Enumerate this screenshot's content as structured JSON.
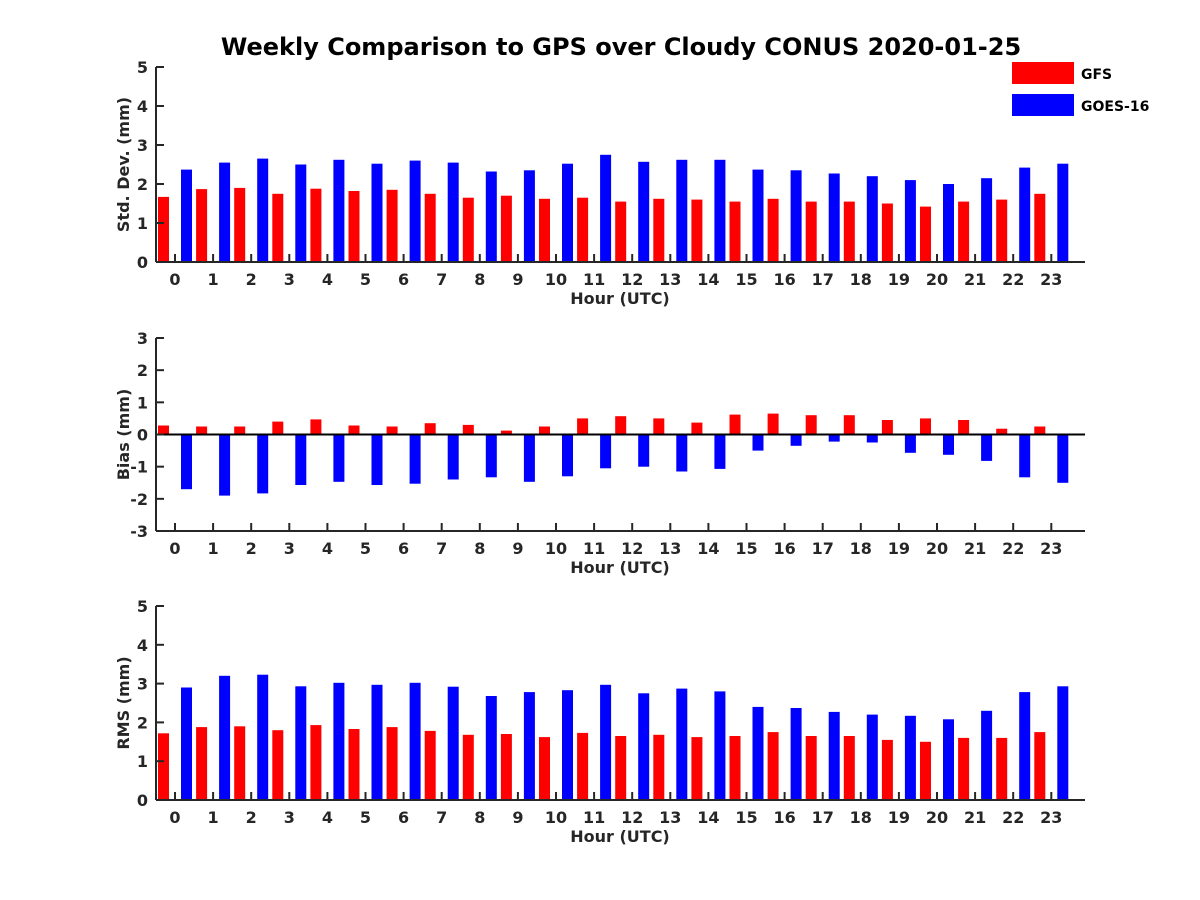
{
  "title": "Weekly Comparison to GPS over Cloudy CONUS 2020-01-25",
  "colors": {
    "GFS": "#ff0000",
    "GOES-16": "#0000ff"
  },
  "legend": [
    {
      "label": "GFS",
      "color": "#ff0000"
    },
    {
      "label": "GOES-16",
      "color": "#0000ff"
    }
  ],
  "chart_data": [
    {
      "type": "bar",
      "xlabel": "Hour (UTC)",
      "ylabel": "Std. Dev. (mm)",
      "ylim": [
        0,
        5
      ],
      "yticks": [
        0,
        1,
        2,
        3,
        4,
        5
      ],
      "categories": [
        "0",
        "1",
        "2",
        "3",
        "4",
        "5",
        "6",
        "7",
        "8",
        "9",
        "10",
        "11",
        "12",
        "13",
        "14",
        "15",
        "16",
        "17",
        "18",
        "19",
        "20",
        "21",
        "22",
        "23"
      ],
      "series": [
        {
          "name": "GFS",
          "values": [
            1.67,
            1.87,
            1.9,
            1.75,
            1.88,
            1.82,
            1.85,
            1.75,
            1.65,
            1.7,
            1.62,
            1.65,
            1.55,
            1.62,
            1.6,
            1.55,
            1.62,
            1.55,
            1.55,
            1.5,
            1.42,
            1.55,
            1.6,
            1.75
          ]
        },
        {
          "name": "GOES-16",
          "values": [
            2.37,
            2.55,
            2.65,
            2.5,
            2.62,
            2.52,
            2.6,
            2.55,
            2.32,
            2.35,
            2.52,
            2.75,
            2.57,
            2.62,
            2.62,
            2.37,
            2.35,
            2.27,
            2.2,
            2.1,
            2.0,
            2.15,
            2.42,
            2.52
          ]
        }
      ]
    },
    {
      "type": "bar",
      "xlabel": "Hour (UTC)",
      "ylabel": "Bias (mm)",
      "ylim": [
        -3,
        3
      ],
      "yticks": [
        -3,
        -2,
        -1,
        0,
        1,
        2,
        3
      ],
      "categories": [
        "0",
        "1",
        "2",
        "3",
        "4",
        "5",
        "6",
        "7",
        "8",
        "9",
        "10",
        "11",
        "12",
        "13",
        "14",
        "15",
        "16",
        "17",
        "18",
        "19",
        "20",
        "21",
        "22",
        "23"
      ],
      "series": [
        {
          "name": "GFS",
          "values": [
            0.28,
            0.25,
            0.25,
            0.4,
            0.47,
            0.28,
            0.25,
            0.35,
            0.3,
            0.12,
            0.25,
            0.5,
            0.57,
            0.5,
            0.37,
            0.62,
            0.65,
            0.6,
            0.6,
            0.45,
            0.5,
            0.45,
            0.18,
            0.25
          ]
        },
        {
          "name": "GOES-16",
          "values": [
            -1.7,
            -1.9,
            -1.83,
            -1.57,
            -1.47,
            -1.57,
            -1.53,
            -1.4,
            -1.33,
            -1.47,
            -1.3,
            -1.05,
            -1.0,
            -1.15,
            -1.07,
            -0.5,
            -0.35,
            -0.22,
            -0.25,
            -0.57,
            -0.63,
            -0.82,
            -1.33,
            -1.5
          ]
        }
      ]
    },
    {
      "type": "bar",
      "xlabel": "Hour (UTC)",
      "ylabel": "RMS (mm)",
      "ylim": [
        0,
        5
      ],
      "yticks": [
        0,
        1,
        2,
        3,
        4,
        5
      ],
      "categories": [
        "0",
        "1",
        "2",
        "3",
        "4",
        "5",
        "6",
        "7",
        "8",
        "9",
        "10",
        "11",
        "12",
        "13",
        "14",
        "15",
        "16",
        "17",
        "18",
        "19",
        "20",
        "21",
        "22",
        "23"
      ],
      "series": [
        {
          "name": "GFS",
          "values": [
            1.72,
            1.88,
            1.9,
            1.8,
            1.93,
            1.83,
            1.88,
            1.78,
            1.68,
            1.7,
            1.62,
            1.73,
            1.65,
            1.68,
            1.62,
            1.65,
            1.75,
            1.65,
            1.65,
            1.55,
            1.5,
            1.6,
            1.6,
            1.75
          ]
        },
        {
          "name": "GOES-16",
          "values": [
            2.9,
            3.2,
            3.23,
            2.93,
            3.02,
            2.97,
            3.02,
            2.92,
            2.68,
            2.78,
            2.83,
            2.97,
            2.75,
            2.87,
            2.8,
            2.4,
            2.37,
            2.27,
            2.2,
            2.17,
            2.08,
            2.3,
            2.78,
            2.93
          ]
        }
      ]
    }
  ]
}
